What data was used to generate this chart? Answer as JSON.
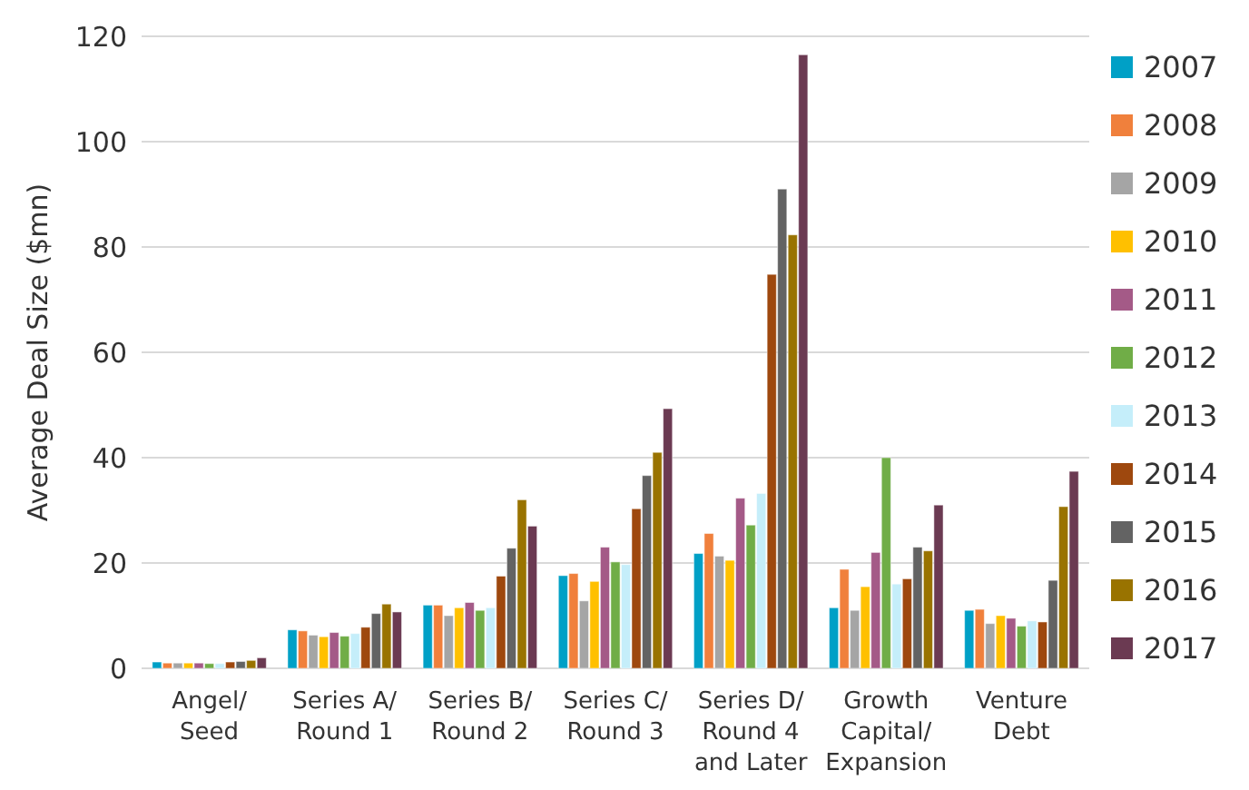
{
  "chart_data": {
    "type": "bar",
    "ylabel": "Average Deal Size ($mn)",
    "categories": [
      "Angel/\nSeed",
      "Series A/\nRound 1",
      "Series B/\nRound 2",
      "Series C/\nRound 3",
      "Series D/\nRound 4\nand Later",
      "Growth\nCapital/\nExpansion",
      "Venture\nDebt"
    ],
    "series": [
      {
        "name": "2007",
        "color": "#00a0c6",
        "values": [
          1.2,
          7.3,
          12,
          17.6,
          21.8,
          11.5,
          11
        ]
      },
      {
        "name": "2008",
        "color": "#f0803c",
        "values": [
          1,
          7.1,
          12,
          18,
          25.6,
          18.8,
          11.2
        ]
      },
      {
        "name": "2009",
        "color": "#a5a5a5",
        "values": [
          1,
          6.3,
          10,
          12.8,
          21.3,
          11,
          8.5
        ]
      },
      {
        "name": "2010",
        "color": "#ffc000",
        "values": [
          1,
          6,
          11.5,
          16.5,
          20.5,
          15.5,
          10
        ]
      },
      {
        "name": "2011",
        "color": "#a45a87",
        "values": [
          1,
          6.8,
          12.5,
          23,
          32.3,
          22,
          9.5
        ]
      },
      {
        "name": "2012",
        "color": "#70ad47",
        "values": [
          0.9,
          6.1,
          11,
          20.2,
          27.2,
          40,
          8
        ]
      },
      {
        "name": "2013",
        "color": "#c5eefa",
        "values": [
          0.9,
          6.6,
          11.5,
          19.7,
          33.2,
          16,
          9
        ]
      },
      {
        "name": "2014",
        "color": "#9e480e",
        "values": [
          1.2,
          7.8,
          17.5,
          30.3,
          74.8,
          17,
          8.8
        ]
      },
      {
        "name": "2015",
        "color": "#636363",
        "values": [
          1.3,
          10.4,
          22.8,
          36.6,
          91,
          23,
          16.7
        ]
      },
      {
        "name": "2016",
        "color": "#997300",
        "values": [
          1.5,
          12.2,
          32,
          41,
          82.3,
          22.3,
          30.7
        ]
      },
      {
        "name": "2017",
        "color": "#6b3a52",
        "values": [
          2,
          10.7,
          27,
          49.3,
          116.5,
          31,
          37.4
        ]
      }
    ],
    "ylim": [
      0,
      120
    ],
    "yticks": [
      0,
      20,
      40,
      60,
      80,
      100,
      120
    ],
    "grid": "y",
    "legend": "right"
  }
}
